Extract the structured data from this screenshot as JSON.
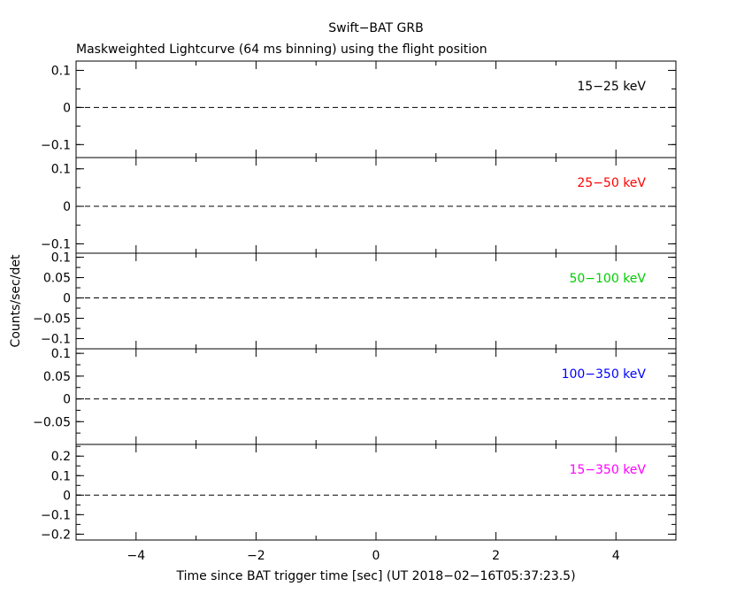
{
  "chart_data": {
    "type": "line",
    "title": "Swift−BAT GRB",
    "subtitle": "Maskweighted Lightcurve (64 ms binning) using the flight position",
    "xlabel": "Time since BAT trigger time [sec] (UT 2018−02−16T05:37:23.5)",
    "ylabel": "Counts/sec/det",
    "xlim": [
      -5,
      5
    ],
    "xticks": [
      -4,
      -2,
      0,
      2,
      4
    ],
    "xtick_labels": [
      "−4",
      "−2",
      "0",
      "2",
      "4"
    ],
    "grid": false,
    "panels": [
      {
        "band": "15−25 keV",
        "color": "#000000",
        "ylim": [
          -0.135,
          0.125
        ],
        "yticks": [
          -0.1,
          0,
          0.1
        ],
        "ytick_labels": [
          "−0.1",
          "0",
          "0.1"
        ],
        "baseline": 0
      },
      {
        "band": "25−50 keV",
        "color": "#ff0000",
        "ylim": [
          -0.125,
          0.13
        ],
        "yticks": [
          -0.1,
          0,
          0.1
        ],
        "ytick_labels": [
          "−0.1",
          "0",
          "0.1"
        ],
        "baseline": 0
      },
      {
        "band": "50−100 keV",
        "color": "#00cc00",
        "ylim": [
          -0.125,
          0.11
        ],
        "yticks": [
          -0.1,
          -0.05,
          0,
          0.05,
          0.1
        ],
        "ytick_labels": [
          "−0.1",
          "−0.05",
          "0",
          "0.05",
          "0.1"
        ],
        "baseline": 0
      },
      {
        "band": "100−350 keV",
        "color": "#0000ff",
        "ylim": [
          -0.1,
          0.11
        ],
        "yticks": [
          -0.05,
          0,
          0.05,
          0.1
        ],
        "ytick_labels": [
          "−0.05",
          "0",
          "0.05",
          "0.1"
        ],
        "baseline": 0
      },
      {
        "band": "15−350 keV",
        "color": "#ff00ff",
        "ylim": [
          -0.23,
          0.26
        ],
        "yticks": [
          -0.2,
          -0.1,
          0,
          0.1,
          0.2
        ],
        "ytick_labels": [
          "−0.2",
          "−0.1",
          "0",
          "0.1",
          "0.2"
        ],
        "baseline": 0
      }
    ]
  }
}
